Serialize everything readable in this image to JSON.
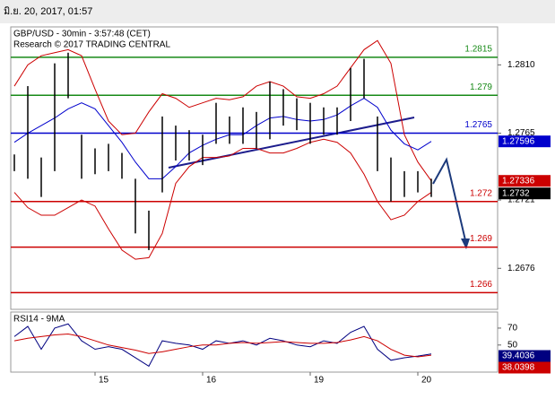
{
  "header": {
    "date": "มิ.ย. 20, 2017, 01:57"
  },
  "chart_data": [
    {
      "type": "ohlc",
      "title": "GBP/USD - 30min - 3:57:48 (CET)",
      "subtitle": "Research © 2017 TRADING CENTRAL",
      "high": [
        1.2751,
        1.2796,
        1.2749,
        1.2811,
        1.2818,
        1.2764,
        1.2755,
        1.2758,
        1.2752,
        1.2735,
        1.2714,
        1.2776,
        1.277,
        1.2767,
        1.2764,
        1.2785,
        1.2776,
        1.2782,
        1.2779,
        1.2799,
        1.2794,
        1.2788,
        1.2785,
        1.2782,
        1.2782,
        1.2808,
        1.2814,
        1.2776,
        1.2749,
        1.274,
        1.274,
        1.2735
      ],
      "low": [
        1.274,
        1.2735,
        1.2723,
        1.274,
        1.2788,
        1.2735,
        1.2738,
        1.274,
        1.2735,
        1.2699,
        1.2688,
        1.2726,
        1.2747,
        1.2747,
        1.2744,
        1.2758,
        1.2758,
        1.2758,
        1.2755,
        1.2761,
        1.277,
        1.2767,
        1.2758,
        1.2764,
        1.2764,
        1.2773,
        1.2788,
        1.274,
        1.272,
        1.2723,
        1.2726,
        1.2723
      ],
      "color": "#000000",
      "bands": {
        "upper": [
          1.2796,
          1.281,
          1.2816,
          1.2818,
          1.282,
          1.2816,
          1.2794,
          1.2773,
          1.2764,
          1.2765,
          1.2779,
          1.2791,
          1.2788,
          1.2782,
          1.2785,
          1.2788,
          1.2787,
          1.2789,
          1.2796,
          1.2799,
          1.2796,
          1.2789,
          1.2788,
          1.2791,
          1.2796,
          1.2808,
          1.282,
          1.2826,
          1.2811,
          1.2764,
          1.2746,
          1.27336
        ],
        "middle": [
          1.2759,
          1.2765,
          1.277,
          1.2775,
          1.2781,
          1.2785,
          1.2781,
          1.277,
          1.2759,
          1.2746,
          1.2735,
          1.2735,
          1.2743,
          1.2752,
          1.2757,
          1.2761,
          1.2764,
          1.2764,
          1.277,
          1.2775,
          1.2776,
          1.2774,
          1.2773,
          1.2774,
          1.2777,
          1.2783,
          1.2788,
          1.2782,
          1.2767,
          1.2758,
          1.2754,
          1.27596
        ],
        "lower": [
          1.2726,
          1.2716,
          1.2711,
          1.2711,
          1.2716,
          1.2721,
          1.2717,
          1.2702,
          1.2688,
          1.2682,
          1.2683,
          1.2699,
          1.2732,
          1.2743,
          1.2749,
          1.2749,
          1.275,
          1.2755,
          1.2755,
          1.2752,
          1.2752,
          1.2755,
          1.2759,
          1.2761,
          1.2759,
          1.2752,
          1.2738,
          1.272,
          1.2708,
          1.2711,
          1.272,
          1.2726
        ],
        "outer_color": "#cc0000",
        "middle_color": "#0000cc"
      },
      "levels": [
        {
          "value": 1.2815,
          "color": "#178a17"
        },
        {
          "value": 1.279,
          "color": "#178a17"
        },
        {
          "value": 1.2765,
          "color": "#0000cc"
        },
        {
          "value": 1.272,
          "color": "#cc0000"
        },
        {
          "value": 1.269,
          "color": "#cc0000"
        },
        {
          "value": 1.266,
          "color": "#cc0000"
        }
      ],
      "last_price": 1.2732,
      "ylim": [
        1.2649,
        1.2835
      ],
      "yticks": [
        {
          "value": 1.281,
          "label": "1.2810"
        },
        1.2765,
        1.2721,
        1.2676
      ],
      "grid": false
    },
    {
      "type": "line",
      "title": "RSI14 - 9MA",
      "categories": [
        null,
        null,
        null,
        null,
        null,
        null,
        "15",
        null,
        null,
        null,
        null,
        null,
        null,
        null,
        "16",
        null,
        null,
        null,
        null,
        null,
        null,
        null,
        "19",
        null,
        null,
        null,
        null,
        null,
        null,
        null,
        "20",
        null
      ],
      "series": [
        {
          "color": "#000080",
          "values": [
            60,
            72,
            45,
            70,
            75,
            55,
            45,
            48,
            45,
            35,
            25,
            55,
            52,
            50,
            45,
            55,
            52,
            55,
            50,
            58,
            55,
            50,
            48,
            55,
            52,
            65,
            72,
            45,
            32,
            35,
            37,
            39.4036
          ]
        },
        {
          "color": "#cc0000",
          "values": [
            55,
            58,
            60,
            62,
            63,
            60,
            55,
            50,
            47,
            44,
            40,
            42,
            45,
            48,
            50,
            50,
            52,
            53,
            52,
            53,
            54,
            53,
            52,
            52,
            53,
            56,
            60,
            55,
            45,
            38,
            36,
            38.0398
          ]
        }
      ],
      "ylim": [
        18,
        89
      ],
      "yticks": [
        70,
        50
      ],
      "grid": false
    }
  ]
}
